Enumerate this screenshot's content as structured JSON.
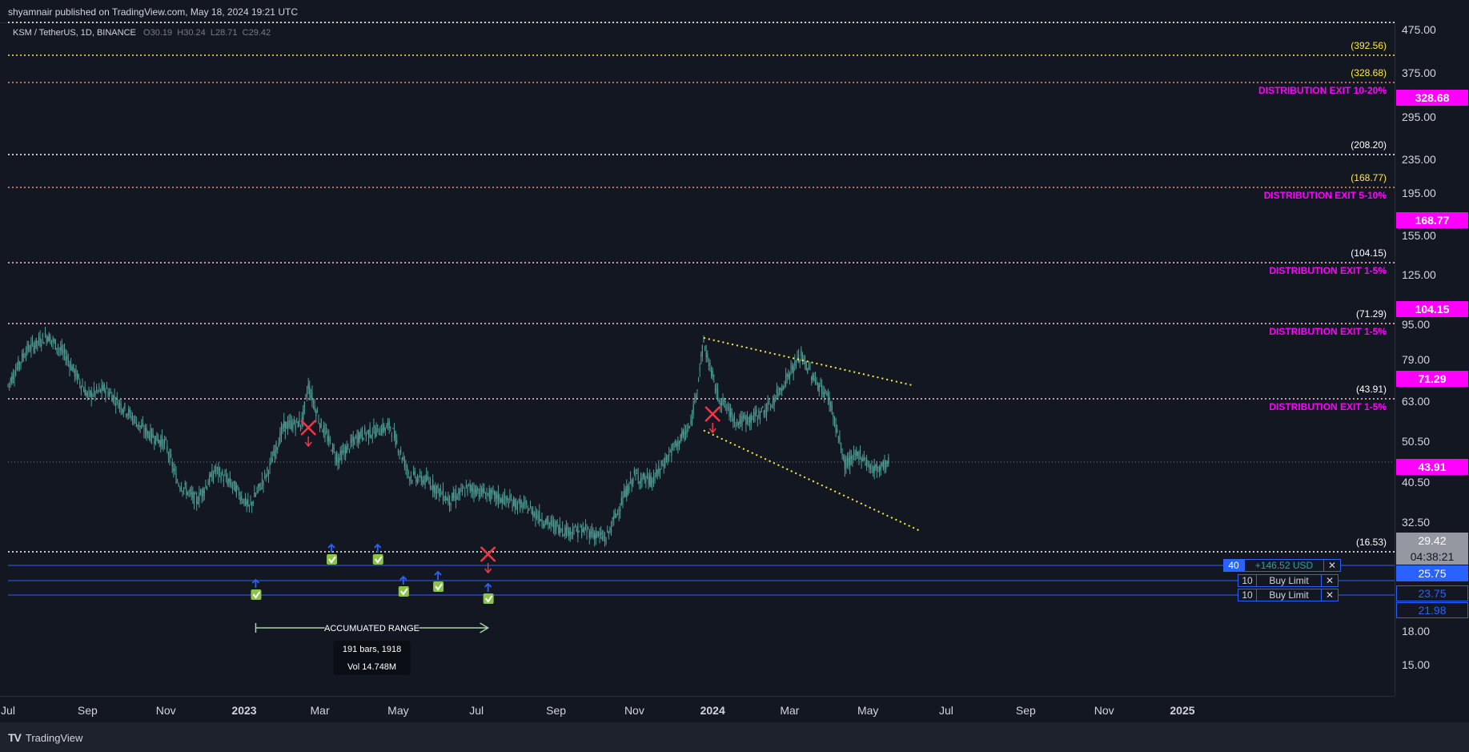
{
  "header": {
    "published": "shyamnair published on TradingView.com, May 18, 2024 19:21 UTC"
  },
  "symbol": {
    "name": "KSM / TetherUS, 1D, BINANCE",
    "o_label": "O",
    "o_value": "30.19",
    "h_label": "H",
    "h_value": "30.24",
    "l_label": "L",
    "l_value": "28.71",
    "c_label": "C",
    "c_value": "29.42"
  },
  "colors": {
    "background": "#131722",
    "candle": "#4e9e96",
    "magenta": "#ff00ff",
    "yellow_label": "#ffeb3b",
    "order_blue": "#2962ff",
    "signal_red": "#f23645"
  },
  "price_axis_ticks": [
    "475.00",
    "375.00",
    "295.00",
    "235.00",
    "195.00",
    "155.00",
    "125.00",
    "95.00",
    "79.00",
    "63.00",
    "50.50",
    "40.50",
    "32.50",
    "18.00",
    "15.00"
  ],
  "time_axis_ticks": [
    "Jul",
    "Sep",
    "Nov",
    "2023",
    "Mar",
    "May",
    "Jul",
    "Sep",
    "Nov",
    "2024",
    "Mar",
    "May",
    "Jul",
    "Sep",
    "Nov",
    "2025"
  ],
  "levels": [
    {
      "value": 392.56,
      "label": "(392.56)",
      "label_color": "#ffeb3b",
      "line_color": "#ffeb3b",
      "note": ""
    },
    {
      "value": 328.68,
      "label": "(328.68)",
      "label_color": "#ffeb3b",
      "line_color": "#ff8a65",
      "note": "DISTRIBUTION EXIT 10-20%"
    },
    {
      "value": 208.2,
      "label": "(208.20)",
      "label_color": "#ffffff",
      "line_color": "#ffffff",
      "note": ""
    },
    {
      "value": 168.77,
      "label": "(168.77)",
      "label_color": "#ffeb3b",
      "line_color": "#ff8a65",
      "note": "DISTRIBUTION EXIT 5-10%"
    },
    {
      "value": 104.15,
      "label": "(104.15)",
      "label_color": "#ffffff",
      "line_color": "#ffc1e0",
      "note": "DISTRIBUTION EXIT 1-5%"
    },
    {
      "value": 71.29,
      "label": "(71.29)",
      "label_color": "#ffffff",
      "line_color": "#ffc1e0",
      "note": "DISTRIBUTION EXIT 1-5%"
    },
    {
      "value": 43.91,
      "label": "(43.91)",
      "label_color": "#ffffff",
      "line_color": "#ffc1e0",
      "note": "DISTRIBUTION EXIT 1-5%"
    },
    {
      "value": 16.53,
      "label": "(16.53)",
      "label_color": "#ffffff",
      "line_color": "#ffffff",
      "note": ""
    }
  ],
  "price_tags": [
    {
      "text": "328.68",
      "style": "magenta"
    },
    {
      "text": "168.77",
      "style": "magenta"
    },
    {
      "text": "104.15",
      "style": "magenta"
    },
    {
      "text": "71.29",
      "style": "magenta"
    },
    {
      "text": "43.91",
      "style": "magenta"
    },
    {
      "text": "29.42",
      "style": "current"
    },
    {
      "text": "04:38:21",
      "style": "current"
    },
    {
      "text": "25.75",
      "style": "blue"
    },
    {
      "text": "23.75",
      "style": "outline"
    },
    {
      "text": "21.98",
      "style": "outline"
    }
  ],
  "orders": [
    {
      "qty": "40",
      "text": "+146.52 USD",
      "close": "✕"
    },
    {
      "qty": "10",
      "text": "Buy Limit",
      "close": "✕"
    },
    {
      "qty": "10",
      "text": "Buy Limit",
      "close": "✕"
    }
  ],
  "annotations": {
    "range_label": "ACCUMUATED RANGE",
    "bars_label": "191 bars, 1918",
    "vol_label": "Vol 14.748M"
  },
  "footer": {
    "brand": "TradingView"
  },
  "chart_data": {
    "type": "candlestick",
    "symbol": "KSM / TetherUS",
    "interval": "1D",
    "exchange": "BINANCE",
    "y_scale": "log",
    "ylim": [
      13,
      480
    ],
    "x_range": [
      "2022-07",
      "2025-01"
    ],
    "series": [
      {
        "name": "KSM / TetherUS",
        "points": [
          [
            "2022-07-01",
            48
          ],
          [
            "2022-07-15",
            60
          ],
          [
            "2022-08-01",
            66
          ],
          [
            "2022-08-15",
            58
          ],
          [
            "2022-09-01",
            45
          ],
          [
            "2022-09-15",
            47
          ],
          [
            "2022-10-01",
            41
          ],
          [
            "2022-10-15",
            36
          ],
          [
            "2022-11-01",
            33
          ],
          [
            "2022-11-10",
            26
          ],
          [
            "2022-11-25",
            23
          ],
          [
            "2022-12-10",
            28
          ],
          [
            "2022-12-25",
            25
          ],
          [
            "2023-01-05",
            22
          ],
          [
            "2023-01-20",
            28
          ],
          [
            "2023-02-01",
            37
          ],
          [
            "2023-02-15",
            38
          ],
          [
            "2023-02-20",
            48
          ],
          [
            "2023-03-01",
            38
          ],
          [
            "2023-03-15",
            30
          ],
          [
            "2023-04-01",
            35
          ],
          [
            "2023-04-15",
            36
          ],
          [
            "2023-04-25",
            37
          ],
          [
            "2023-05-10",
            27
          ],
          [
            "2023-05-25",
            26
          ],
          [
            "2023-06-10",
            23
          ],
          [
            "2023-06-25",
            25
          ],
          [
            "2023-07-10",
            24
          ],
          [
            "2023-07-25",
            23
          ],
          [
            "2023-08-10",
            22
          ],
          [
            "2023-08-25",
            20
          ],
          [
            "2023-09-10",
            19
          ],
          [
            "2023-09-25",
            19
          ],
          [
            "2023-10-10",
            18
          ],
          [
            "2023-10-20",
            22
          ],
          [
            "2023-11-01",
            27
          ],
          [
            "2023-11-15",
            26
          ],
          [
            "2023-12-01",
            32
          ],
          [
            "2023-12-15",
            37
          ],
          [
            "2023-12-25",
            63
          ],
          [
            "2024-01-05",
            45
          ],
          [
            "2024-01-20",
            38
          ],
          [
            "2024-02-01",
            39
          ],
          [
            "2024-02-15",
            42
          ],
          [
            "2024-03-01",
            52
          ],
          [
            "2024-03-10",
            58
          ],
          [
            "2024-03-20",
            50
          ],
          [
            "2024-04-01",
            44
          ],
          [
            "2024-04-13",
            29
          ],
          [
            "2024-04-25",
            31
          ],
          [
            "2024-05-05",
            28
          ],
          [
            "2024-05-18",
            29.42
          ]
        ]
      }
    ],
    "signals_sell": [
      "2023-02-20",
      "2023-07-10",
      "2024-01-01"
    ],
    "signals_buy": [
      "2023-01-10",
      "2023-03-10",
      "2023-04-15",
      "2023-05-05",
      "2023-06-01",
      "2023-07-10"
    ],
    "trendlines": [
      {
        "from": [
          "2023-12-25",
          65
        ],
        "to": [
          "2024-06-05",
          48
        ]
      },
      {
        "from": [
          "2023-12-25",
          36
        ],
        "to": [
          "2024-06-10",
          19
        ]
      }
    ],
    "accumulated_range": {
      "from": "2023-01-10",
      "to": "2023-07-10",
      "price": 19.8
    }
  }
}
